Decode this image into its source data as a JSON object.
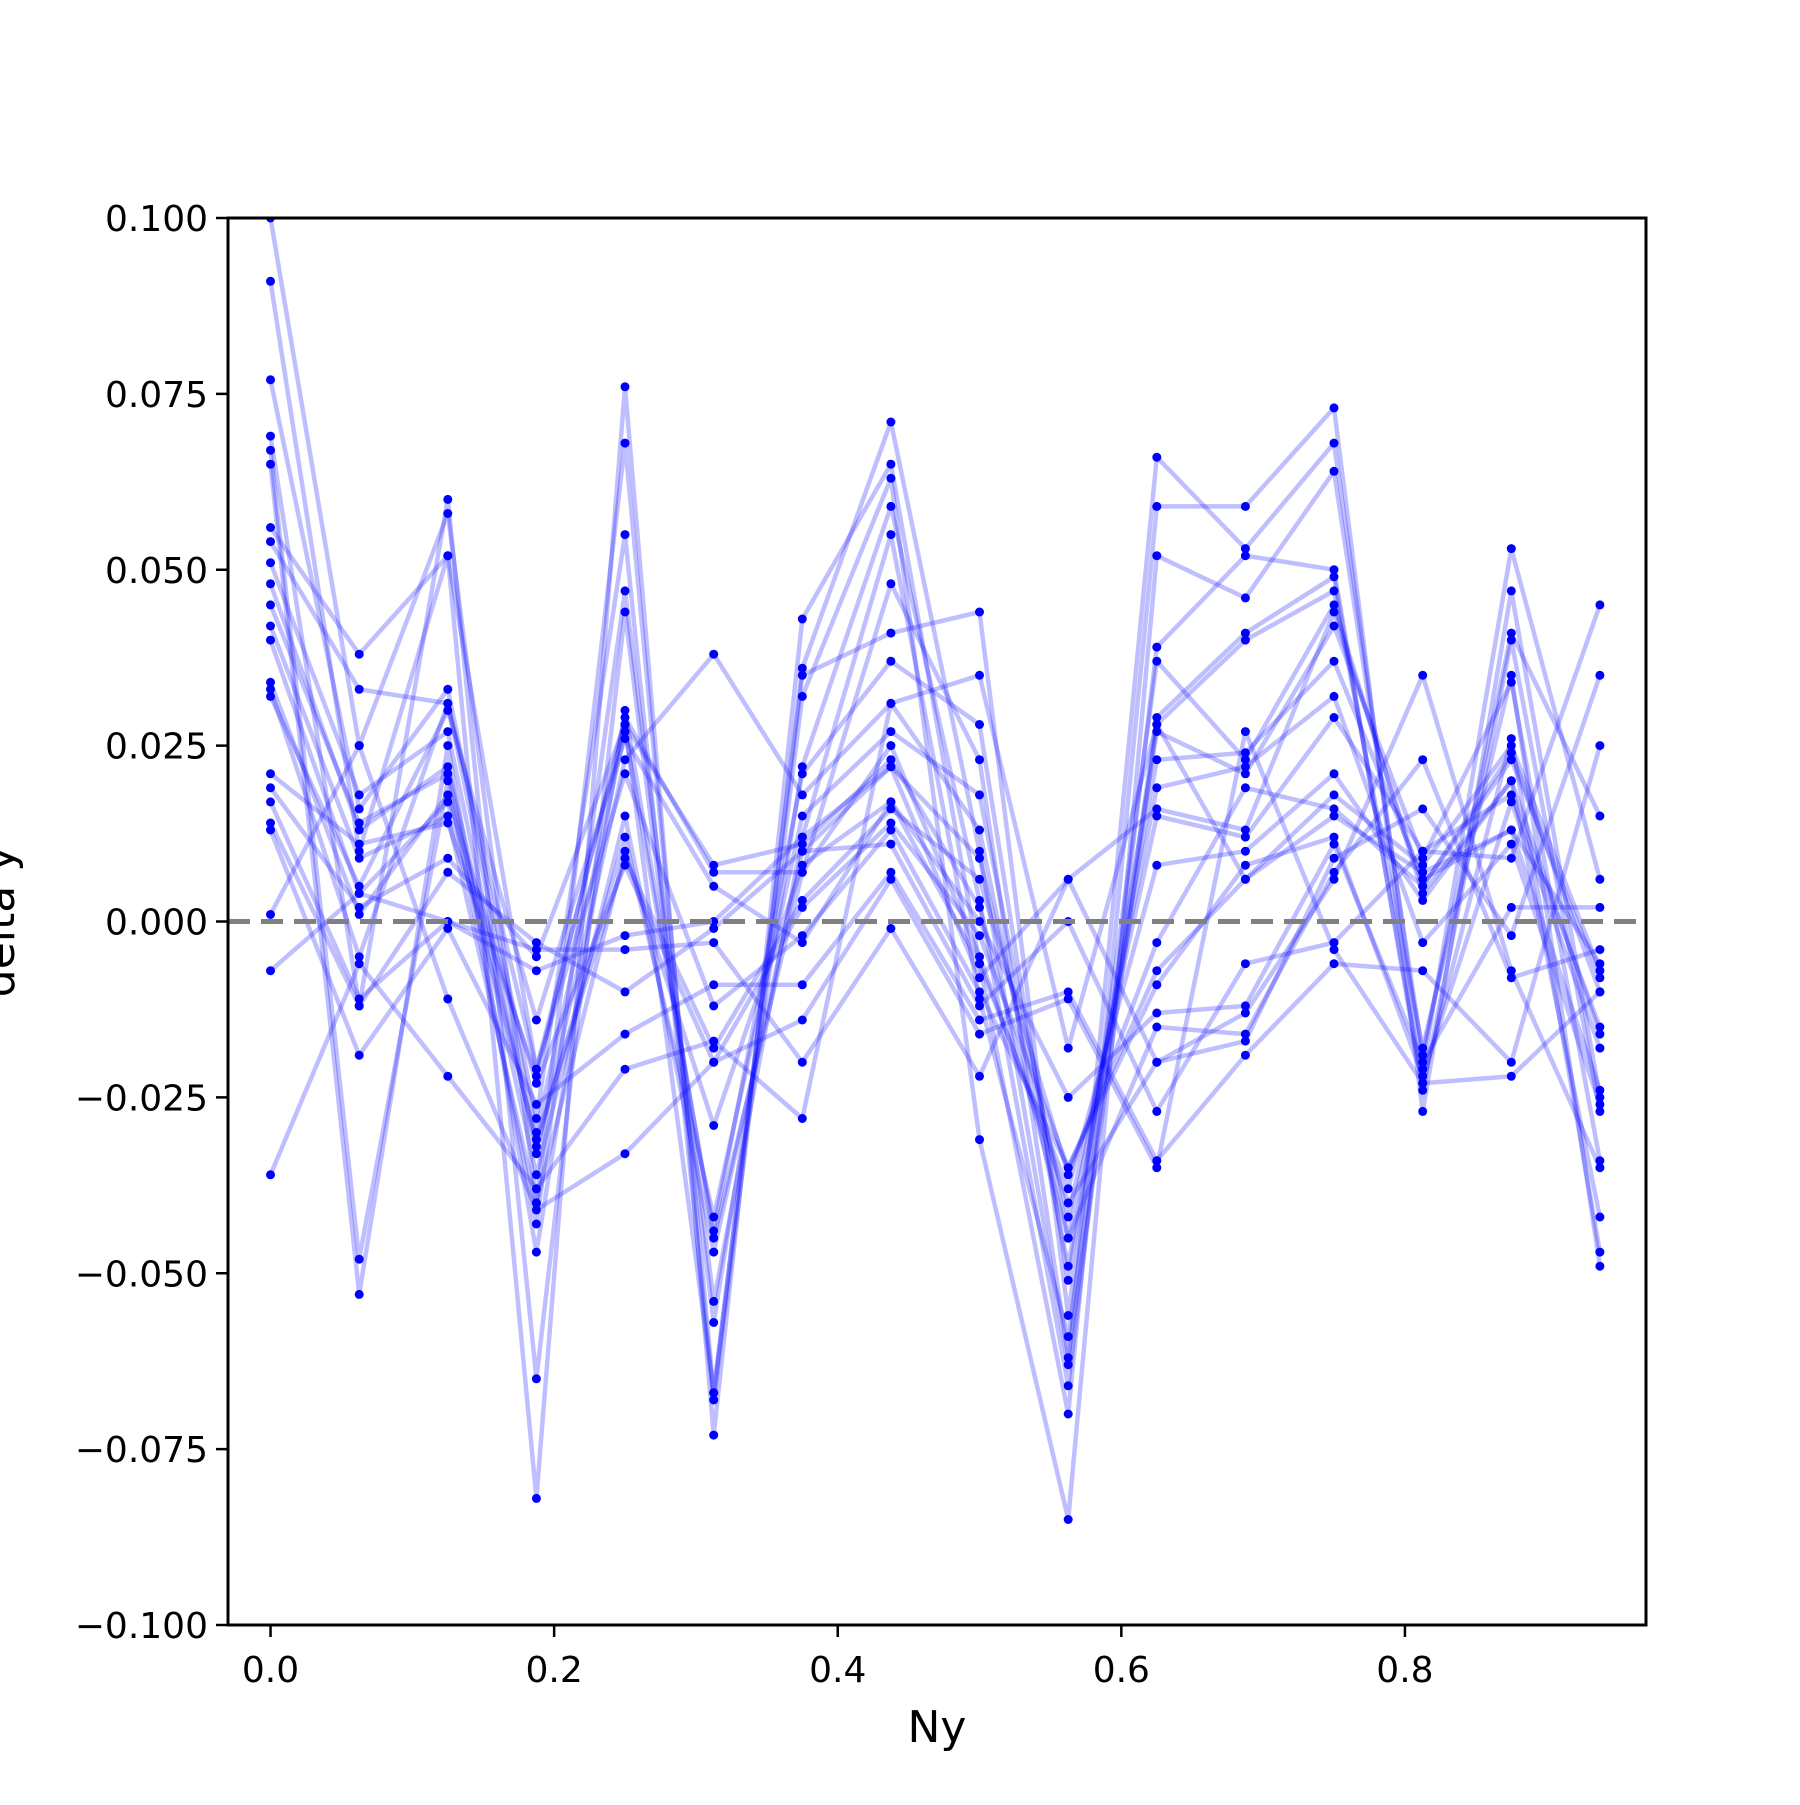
{
  "chart_data": {
    "type": "line",
    "title": "",
    "xlabel": "Ny",
    "ylabel": "delta y",
    "xlim": [
      -0.03,
      0.97
    ],
    "ylim": [
      -0.1,
      0.1
    ],
    "x_ticks": [
      0.0,
      0.2,
      0.4,
      0.6,
      0.8
    ],
    "x_tick_labels": [
      "0.0",
      "0.2",
      "0.4",
      "0.6",
      "0.8"
    ],
    "y_ticks": [
      0.1,
      0.075,
      0.05,
      0.025,
      0.0,
      -0.025,
      -0.05,
      -0.075,
      -0.1
    ],
    "y_tick_labels": [
      "0.100",
      "0.075",
      "0.050",
      "0.025",
      "0.000",
      "−0.025",
      "−0.050",
      "−0.075",
      "−0.100"
    ],
    "reference_line": {
      "y": 0.0,
      "style": "dashed",
      "color": "#808080"
    },
    "series_color": "#0000ff",
    "line_opacity": 0.25,
    "grid": false,
    "legend": "none",
    "x": [
      0.0,
      0.0625,
      0.125,
      0.1875,
      0.25,
      0.3125,
      0.375,
      0.4375,
      0.5,
      0.5625,
      0.625,
      0.6875,
      0.75,
      0.8125,
      0.875,
      0.9375
    ],
    "series": [
      {
        "values": [
          0.1,
          0.025,
          0.058,
          -0.04,
          0.068,
          -0.067,
          0.036,
          0.071,
          0.01,
          -0.063,
          0.066,
          0.053,
          0.068,
          -0.021,
          0.053,
          0.006
        ]
      },
      {
        "values": [
          0.091,
          0.01,
          0.052,
          -0.082,
          0.076,
          -0.073,
          0.043,
          0.065,
          -0.006,
          -0.07,
          0.059,
          0.059,
          0.073,
          -0.027,
          0.047,
          -0.025
        ]
      },
      {
        "values": [
          0.077,
          0.016,
          0.033,
          -0.028,
          0.055,
          -0.068,
          0.032,
          0.063,
          -0.031,
          -0.085,
          0.052,
          0.046,
          0.064,
          -0.019,
          0.041,
          0.015
        ]
      },
      {
        "values": [
          0.069,
          -0.012,
          0.06,
          -0.065,
          0.044,
          -0.057,
          0.022,
          0.059,
          0.003,
          -0.066,
          0.039,
          0.052,
          0.05,
          -0.024,
          0.04,
          -0.027
        ]
      },
      {
        "values": [
          0.067,
          -0.048,
          0.02,
          -0.043,
          0.047,
          -0.054,
          0.012,
          0.055,
          -0.011,
          -0.059,
          0.029,
          0.041,
          0.049,
          -0.023,
          0.026,
          -0.047
        ]
      },
      {
        "values": [
          0.065,
          -0.053,
          0.025,
          -0.047,
          0.03,
          -0.045,
          0.007,
          0.048,
          0.023,
          -0.062,
          0.028,
          0.04,
          0.047,
          -0.018,
          0.035,
          -0.049
        ]
      },
      {
        "values": [
          0.056,
          0.038,
          0.052,
          -0.021,
          0.028,
          -0.067,
          0.035,
          0.041,
          0.044,
          -0.056,
          0.037,
          0.023,
          0.045,
          0.004,
          0.02,
          -0.042
        ]
      },
      {
        "values": [
          0.054,
          0.033,
          0.031,
          -0.03,
          0.027,
          -0.044,
          0.021,
          0.037,
          0.028,
          -0.051,
          0.027,
          0.021,
          0.042,
          0.009,
          0.034,
          -0.034
        ]
      },
      {
        "values": [
          0.051,
          0.018,
          0.027,
          -0.033,
          0.023,
          0.038,
          0.018,
          0.031,
          0.013,
          -0.049,
          0.023,
          0.024,
          0.037,
          0.006,
          0.013,
          -0.024
        ]
      },
      {
        "values": [
          0.048,
          0.013,
          0.022,
          -0.032,
          0.012,
          -0.042,
          0.015,
          0.027,
          0.018,
          -0.045,
          0.019,
          0.022,
          0.032,
          -0.003,
          0.011,
          -0.026
        ]
      },
      {
        "values": [
          0.045,
          0.014,
          0.021,
          -0.036,
          0.015,
          -0.047,
          0.01,
          0.022,
          0.009,
          -0.042,
          0.015,
          0.012,
          0.029,
          0.01,
          0.018,
          -0.015
        ]
      },
      {
        "values": [
          0.042,
          0.009,
          0.015,
          -0.04,
          0.01,
          -0.029,
          0.008,
          0.017,
          -0.006,
          -0.038,
          0.008,
          0.01,
          0.021,
          0.003,
          0.02,
          -0.016
        ]
      },
      {
        "values": [
          0.04,
          0.004,
          0.017,
          -0.031,
          0.009,
          -0.018,
          0.003,
          0.016,
          0.006,
          -0.036,
          -0.003,
          0.019,
          0.016,
          0.005,
          0.024,
          -0.01
        ]
      },
      {
        "values": [
          0.034,
          0.001,
          0.018,
          -0.023,
          0.008,
          -0.02,
          0.002,
          0.014,
          -0.002,
          -0.035,
          -0.007,
          0.006,
          0.015,
          0.007,
          0.013,
          -0.006
        ]
      },
      {
        "values": [
          0.033,
          -0.005,
          0.031,
          -0.021,
          0.021,
          -0.012,
          -0.002,
          0.013,
          -0.01,
          -0.035,
          -0.009,
          0.008,
          0.012,
          -0.022,
          0.017,
          -0.018
        ]
      },
      {
        "values": [
          0.032,
          0.005,
          0.03,
          -0.014,
          0.026,
          0.005,
          -0.003,
          0.017,
          0.0,
          -0.025,
          -0.013,
          -0.012,
          0.011,
          -0.02,
          0.002,
          0.002
        ]
      },
      {
        "values": [
          0.021,
          0.011,
          0.014,
          -0.022,
          0.029,
          0.007,
          0.007,
          0.025,
          -0.005,
          -0.04,
          -0.02,
          -0.013,
          0.006,
          0.035,
          -0.007,
          -0.035
        ]
      },
      {
        "values": [
          0.019,
          0.002,
          0.009,
          -0.005,
          0.028,
          0.008,
          0.011,
          0.023,
          0.002,
          -0.045,
          -0.015,
          -0.016,
          0.007,
          0.023,
          -0.008,
          -0.004
        ]
      },
      {
        "values": [
          0.017,
          -0.011,
          0.0,
          -0.007,
          -0.002,
          0.0,
          0.012,
          0.022,
          -0.008,
          0.006,
          -0.02,
          -0.017,
          0.009,
          0.016,
          -0.002,
          0.035
        ]
      },
      {
        "values": [
          0.014,
          -0.012,
          0.007,
          -0.003,
          -0.01,
          -0.001,
          0.01,
          0.011,
          -0.012,
          0.0,
          -0.027,
          -0.006,
          -0.003,
          0.01,
          0.009,
          0.045
        ]
      },
      {
        "values": [
          0.013,
          -0.019,
          -0.001,
          -0.026,
          -0.016,
          -0.009,
          -0.009,
          0.007,
          -0.014,
          -0.01,
          -0.034,
          -0.019,
          -0.006,
          -0.007,
          -0.02,
          0.025
        ]
      },
      {
        "values": [
          0.001,
          0.025,
          -0.011,
          -0.041,
          -0.033,
          -0.02,
          -0.014,
          0.006,
          -0.016,
          -0.011,
          -0.035,
          0.027,
          -0.004,
          -0.023,
          -0.022,
          -0.01
        ]
      },
      {
        "values": [
          -0.007,
          0.004,
          0.0,
          -0.004,
          -0.004,
          -0.003,
          -0.02,
          -0.001,
          -0.022,
          0.006,
          0.016,
          0.013,
          0.044,
          0.005,
          0.023,
          -0.008
        ]
      },
      {
        "values": [
          -0.036,
          -0.006,
          -0.022,
          -0.038,
          -0.021,
          -0.017,
          -0.028,
          0.031,
          0.035,
          -0.018,
          0.028,
          0.006,
          0.018,
          0.008,
          0.025,
          -0.007
        ]
      }
    ]
  }
}
